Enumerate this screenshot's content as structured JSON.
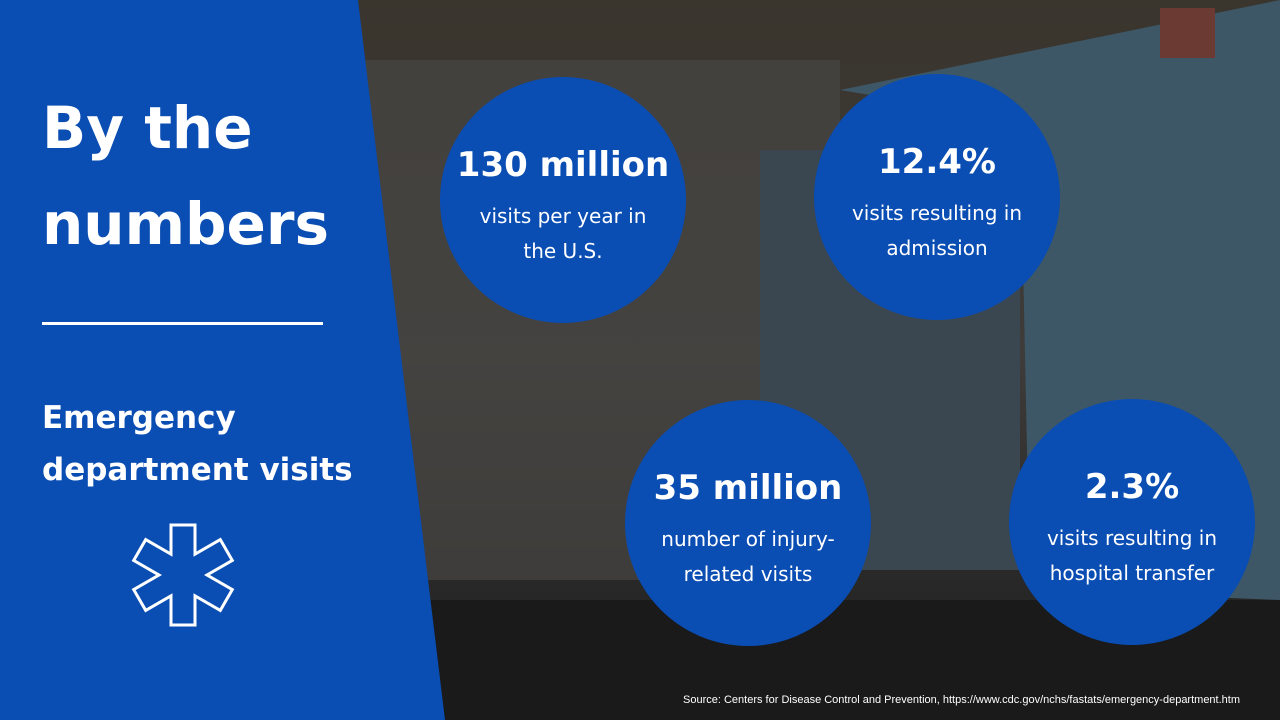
{
  "title": "By the numbers",
  "subtitle": "Emergency department visits",
  "stats": [
    {
      "value": "130 million",
      "label": "visits per year in the U.S."
    },
    {
      "value": "12.4%",
      "label": "visits resulting in admission"
    },
    {
      "value": "35 million",
      "label": "number of injury-related visits"
    },
    {
      "value": "2.3%",
      "label": "visits resulting in hospital transfer"
    }
  ],
  "source": "Source: Centers for Disease Control and Prevention, https://www.cdc.gov/nchs/fastats/emergency-department.htm"
}
